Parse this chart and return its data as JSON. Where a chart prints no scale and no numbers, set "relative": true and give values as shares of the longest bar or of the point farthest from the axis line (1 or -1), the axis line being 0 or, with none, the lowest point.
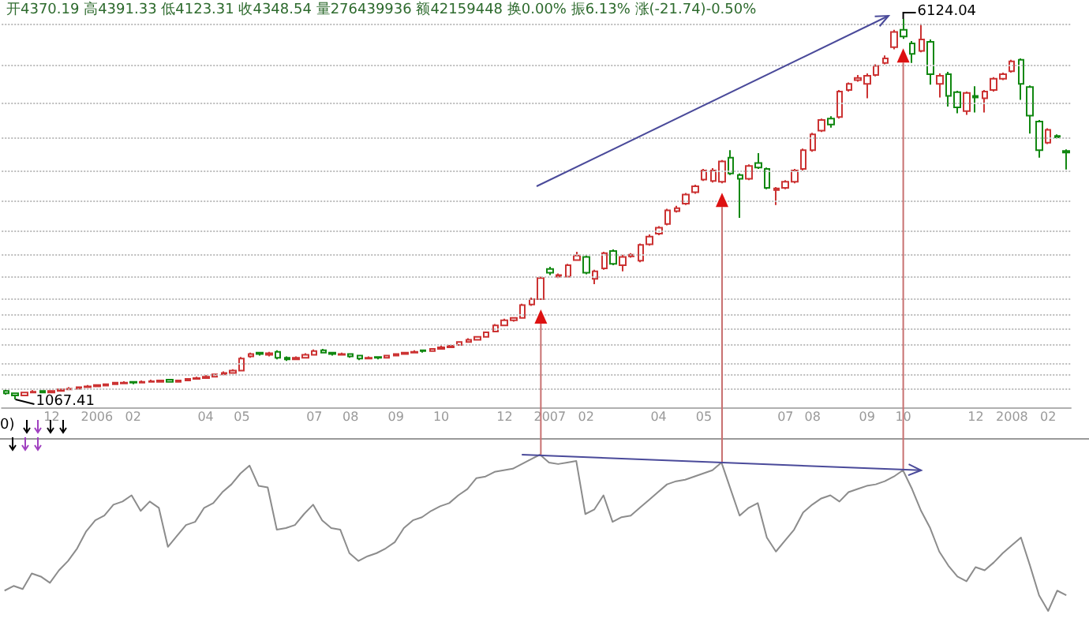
{
  "chart_data": [
    {
      "type": "candlestick",
      "title": "开4370.19 高4391.33 低4123.31 收4348.54 量276439936 额42159448 换0.00% 振6.13% 涨(-21.74)-0.50%",
      "categories": [
        null,
        null,
        null,
        null,
        null,
        "12",
        null,
        null,
        null,
        null,
        "2006",
        null,
        null,
        null,
        "02",
        null,
        null,
        null,
        null,
        null,
        null,
        null,
        "04",
        null,
        null,
        null,
        "05",
        null,
        null,
        null,
        null,
        null,
        null,
        null,
        "07",
        null,
        null,
        null,
        "08",
        null,
        null,
        null,
        null,
        "09",
        null,
        null,
        null,
        null,
        "10",
        null,
        null,
        null,
        null,
        null,
        null,
        "12",
        null,
        null,
        null,
        null,
        "2007",
        null,
        null,
        null,
        "02",
        null,
        null,
        null,
        null,
        null,
        null,
        null,
        "04",
        null,
        null,
        null,
        null,
        "05",
        null,
        null,
        null,
        null,
        null,
        null,
        null,
        null,
        "07",
        null,
        null,
        "08",
        null,
        null,
        null,
        null,
        null,
        "09",
        null,
        null,
        null,
        "10",
        null,
        null,
        null,
        null,
        null,
        null,
        null,
        "12",
        null,
        null,
        null,
        "2008",
        null,
        null,
        null,
        "02",
        null,
        null
      ],
      "ohlc": [
        [
          1180,
          1200,
          1130,
          1150
        ],
        [
          1150,
          1160,
          1067.41,
          1120
        ],
        [
          1120,
          1170,
          1110,
          1160
        ],
        [
          1160,
          1190,
          1150,
          1170
        ],
        [
          1180,
          1190,
          1150,
          1160
        ],
        [
          1160,
          1190,
          1150,
          1180
        ],
        [
          1180,
          1210,
          1170,
          1200
        ],
        [
          1200,
          1230,
          1190,
          1210
        ],
        [
          1210,
          1240,
          1200,
          1230
        ],
        [
          1230,
          1260,
          1220,
          1240
        ],
        [
          1240,
          1270,
          1230,
          1260
        ],
        [
          1250,
          1280,
          1240,
          1270
        ],
        [
          1270,
          1300,
          1260,
          1290
        ],
        [
          1280,
          1310,
          1270,
          1290
        ],
        [
          1300,
          1310,
          1270,
          1290
        ],
        [
          1290,
          1320,
          1280,
          1300
        ],
        [
          1300,
          1330,
          1290,
          1310
        ],
        [
          1300,
          1330,
          1290,
          1320
        ],
        [
          1330,
          1340,
          1290,
          1300
        ],
        [
          1300,
          1330,
          1290,
          1320
        ],
        [
          1320,
          1350,
          1310,
          1340
        ],
        [
          1340,
          1370,
          1330,
          1350
        ],
        [
          1350,
          1390,
          1340,
          1370
        ],
        [
          1370,
          1410,
          1360,
          1400
        ],
        [
          1400,
          1440,
          1390,
          1420
        ],
        [
          1420,
          1470,
          1410,
          1450
        ],
        [
          1450,
          1630,
          1440,
          1610
        ],
        [
          1640,
          1690,
          1620,
          1670
        ],
        [
          1690,
          1700,
          1650,
          1670
        ],
        [
          1660,
          1700,
          1640,
          1680
        ],
        [
          1700,
          1720,
          1600,
          1620
        ],
        [
          1620,
          1640,
          1580,
          1600
        ],
        [
          1600,
          1640,
          1590,
          1620
        ],
        [
          1620,
          1680,
          1610,
          1660
        ],
        [
          1660,
          1730,
          1650,
          1710
        ],
        [
          1720,
          1740,
          1680,
          1690
        ],
        [
          1690,
          1700,
          1650,
          1670
        ],
        [
          1660,
          1690,
          1650,
          1670
        ],
        [
          1670,
          1680,
          1620,
          1640
        ],
        [
          1650,
          1660,
          1590,
          1610
        ],
        [
          1610,
          1640,
          1600,
          1620
        ],
        [
          1630,
          1640,
          1600,
          1620
        ],
        [
          1620,
          1660,
          1610,
          1650
        ],
        [
          1650,
          1680,
          1640,
          1670
        ],
        [
          1670,
          1700,
          1660,
          1690
        ],
        [
          1690,
          1720,
          1680,
          1700
        ],
        [
          1720,
          1730,
          1690,
          1710
        ],
        [
          1710,
          1750,
          1700,
          1740
        ],
        [
          1740,
          1780,
          1730,
          1760
        ],
        [
          1760,
          1790,
          1750,
          1780
        ],
        [
          1790,
          1840,
          1780,
          1830
        ],
        [
          1830,
          1880,
          1820,
          1860
        ],
        [
          1860,
          1910,
          1850,
          1900
        ],
        [
          1900,
          1970,
          1890,
          1960
        ],
        [
          1970,
          2070,
          1960,
          2050
        ],
        [
          2050,
          2140,
          2040,
          2120
        ],
        [
          2120,
          2160,
          2100,
          2150
        ],
        [
          2150,
          2340,
          2140,
          2320
        ],
        [
          2330,
          2420,
          2310,
          2400
        ],
        [
          2400,
          2700,
          2390,
          2680
        ],
        [
          2800,
          2830,
          2720,
          2750
        ],
        [
          2700,
          2740,
          2680,
          2720
        ],
        [
          2700,
          2870,
          2690,
          2850
        ],
        [
          2920,
          3030,
          2910,
          2980
        ],
        [
          2960,
          2990,
          2730,
          2750
        ],
        [
          2670,
          2790,
          2600,
          2770
        ],
        [
          2810,
          3030,
          2790,
          3010
        ],
        [
          3040,
          3060,
          2850,
          2870
        ],
        [
          2850,
          2990,
          2770,
          2960
        ],
        [
          2970,
          3010,
          2950,
          2990
        ],
        [
          2910,
          3140,
          2890,
          3120
        ],
        [
          3130,
          3260,
          3110,
          3230
        ],
        [
          3270,
          3370,
          3250,
          3350
        ],
        [
          3400,
          3600,
          3380,
          3580
        ],
        [
          3570,
          3640,
          3550,
          3610
        ],
        [
          3670,
          3810,
          3650,
          3790
        ],
        [
          3820,
          3920,
          3800,
          3900
        ],
        [
          3990,
          4130,
          3970,
          4110
        ],
        [
          3970,
          4140,
          3950,
          4110
        ],
        [
          3960,
          4250,
          3940,
          4230
        ],
        [
          4280,
          4380,
          4050,
          4070
        ],
        [
          4050,
          4070,
          3480,
          4000
        ],
        [
          4000,
          4190,
          3980,
          4170
        ],
        [
          4210,
          4340,
          4130,
          4150
        ],
        [
          4130,
          4150,
          3860,
          3880
        ],
        [
          3850,
          3890,
          3650,
          3870
        ],
        [
          3880,
          3980,
          3860,
          3960
        ],
        [
          3960,
          4130,
          3940,
          4110
        ],
        [
          4130,
          4400,
          4110,
          4380
        ],
        [
          4380,
          4610,
          4360,
          4590
        ],
        [
          4640,
          4800,
          4620,
          4780
        ],
        [
          4800,
          4830,
          4680,
          4720
        ],
        [
          4820,
          5180,
          4800,
          5160
        ],
        [
          5180,
          5280,
          5160,
          5260
        ],
        [
          5310,
          5380,
          5290,
          5340
        ],
        [
          5260,
          5400,
          5070,
          5370
        ],
        [
          5380,
          5520,
          5360,
          5500
        ],
        [
          5540,
          5640,
          5520,
          5600
        ],
        [
          5750,
          5980,
          5720,
          5950
        ],
        [
          5980,
          6124.04,
          5860,
          5890
        ],
        [
          5800,
          5830,
          5540,
          5660
        ],
        [
          5700,
          6060,
          5680,
          5850
        ],
        [
          5820,
          5850,
          5250,
          5390
        ],
        [
          5260,
          5400,
          5080,
          5370
        ],
        [
          5390,
          5420,
          4960,
          5100
        ],
        [
          5150,
          5170,
          4870,
          4950
        ],
        [
          4900,
          5160,
          4850,
          5140
        ],
        [
          5100,
          5230,
          4880,
          5080
        ],
        [
          5070,
          5180,
          4880,
          5160
        ],
        [
          5180,
          5350,
          5160,
          5330
        ],
        [
          5330,
          5410,
          5310,
          5390
        ],
        [
          5430,
          5580,
          5410,
          5560
        ],
        [
          5580,
          5600,
          5050,
          5260
        ],
        [
          5220,
          5240,
          4600,
          4840
        ],
        [
          4760,
          4780,
          4280,
          4380
        ],
        [
          4480,
          4670,
          4460,
          4650
        ],
        [
          4570,
          4590,
          4530,
          4550
        ],
        [
          4370.19,
          4391.33,
          4123.31,
          4348.54
        ]
      ],
      "colors": [
        "#118811",
        "#118811",
        "#cc3333",
        "#cc3333",
        "#118811",
        "#cc3333",
        "#cc3333",
        "#cc3333",
        "#cc3333",
        "#cc3333",
        "#cc3333",
        "#cc3333",
        "#cc3333",
        "#cc3333",
        "#118811",
        "#cc3333",
        "#cc3333",
        "#cc3333",
        "#118811",
        "#cc3333",
        "#cc3333",
        "#cc3333",
        "#cc3333",
        "#cc3333",
        "#cc3333",
        "#cc3333",
        "#cc3333",
        "#cc3333",
        "#118811",
        "#cc3333",
        "#118811",
        "#118811",
        "#cc3333",
        "#cc3333",
        "#cc3333",
        "#118811",
        "#118811",
        "#cc3333",
        "#118811",
        "#118811",
        "#cc3333",
        "#118811",
        "#cc3333",
        "#cc3333",
        "#cc3333",
        "#cc3333",
        "#118811",
        "#cc3333",
        "#cc3333",
        "#cc3333",
        "#cc3333",
        "#cc3333",
        "#cc3333",
        "#cc3333",
        "#cc3333",
        "#cc3333",
        "#cc3333",
        "#cc3333",
        "#cc3333",
        "#cc3333",
        "#118811",
        "#cc3333",
        "#cc3333",
        "#cc3333",
        "#118811",
        "#cc3333",
        "#cc3333",
        "#118811",
        "#cc3333",
        "#cc3333",
        "#cc3333",
        "#cc3333",
        "#cc3333",
        "#cc3333",
        "#cc3333",
        "#cc3333",
        "#cc3333",
        "#cc3333",
        "#cc3333",
        "#cc3333",
        "#118811",
        "#118811",
        "#cc3333",
        "#118811",
        "#118811",
        "#cc3333",
        "#cc3333",
        "#cc3333",
        "#cc3333",
        "#cc3333",
        "#cc3333",
        "#118811",
        "#cc3333",
        "#cc3333",
        "#cc3333",
        "#cc3333",
        "#cc3333",
        "#cc3333",
        "#cc3333",
        "#118811",
        "#118811",
        "#cc3333",
        "#118811",
        "#cc3333",
        "#118811",
        "#118811",
        "#cc3333",
        "#118811",
        "#cc3333",
        "#cc3333",
        "#cc3333",
        "#cc3333",
        "#118811",
        "#118811",
        "#118811",
        "#cc3333",
        "#118811",
        "#118811"
      ],
      "yticks": [
        {
          "value": 6050,
          "label": null
        },
        {
          "value": 5500,
          "label": null
        },
        {
          "value": 5000,
          "label": null
        },
        {
          "value": 4550,
          "label": null
        },
        {
          "value": 4100,
          "label": null
        },
        {
          "value": 3700,
          "label": null
        },
        {
          "value": 3300,
          "label": null
        },
        {
          "value": 3000,
          "label": null
        },
        {
          "value": 2700,
          "label": null
        },
        {
          "value": 2400,
          "label": null
        },
        {
          "value": 2200,
          "label": null
        },
        {
          "value": 2000,
          "label": null
        },
        {
          "value": 1800,
          "label": null
        },
        {
          "value": 1550,
          "label": null
        },
        {
          "value": 1400,
          "label": null
        },
        {
          "value": 1200,
          "label": null
        }
      ],
      "grid": "y",
      "tick_labels": "x",
      "annotations": [
        "6124.04",
        "1067.41"
      ]
    },
    {
      "type": "line",
      "relative": true,
      "color": "#8c8c8c",
      "marker": "none",
      "tick_labels": false,
      "annotations": [
        "0)"
      ],
      "categories": [
        null,
        null,
        null,
        null,
        null,
        null,
        null,
        null,
        null,
        null,
        null,
        null,
        null,
        null,
        null,
        null,
        null,
        null,
        null,
        null,
        null,
        null,
        null,
        null,
        null,
        null,
        null,
        null,
        null,
        null,
        null,
        null,
        null,
        null,
        null,
        null,
        null,
        null,
        null,
        null,
        null,
        null,
        null,
        null,
        null,
        null,
        null,
        null,
        null,
        null,
        null,
        null,
        null,
        null,
        null,
        null,
        null,
        null,
        null,
        null,
        null,
        null,
        null,
        null,
        null,
        null,
        null,
        null,
        null,
        null,
        null,
        null,
        null,
        null,
        null,
        null,
        null,
        null,
        null,
        null,
        null,
        null,
        null,
        null,
        null,
        null,
        null,
        null,
        null,
        null,
        null,
        null,
        null,
        null,
        null,
        null,
        null,
        null,
        null,
        null,
        null,
        null,
        null,
        null,
        null,
        null,
        null,
        null,
        null,
        null,
        null,
        null,
        null,
        null,
        null,
        null,
        null,
        null
      ],
      "values": [
        0.13,
        0.16,
        0.14,
        0.24,
        0.22,
        0.18,
        0.26,
        0.32,
        0.4,
        0.51,
        0.58,
        0.61,
        0.68,
        0.7,
        0.74,
        0.64,
        0.7,
        0.66,
        0.41,
        0.48,
        0.55,
        0.57,
        0.66,
        0.69,
        0.76,
        0.81,
        0.88,
        0.93,
        0.8,
        0.79,
        0.52,
        0.53,
        0.55,
        0.62,
        0.68,
        0.58,
        0.53,
        0.52,
        0.37,
        0.32,
        0.35,
        0.37,
        0.4,
        0.44,
        0.53,
        0.58,
        0.6,
        0.64,
        0.67,
        0.69,
        0.74,
        0.78,
        0.85,
        0.86,
        0.89,
        0.9,
        0.91,
        0.94,
        0.97,
        1,
        0.95,
        0.94,
        0.95,
        0.96,
        0.62,
        0.65,
        0.74,
        0.57,
        0.6,
        0.61,
        0.66,
        0.71,
        0.76,
        0.81,
        0.83,
        0.84,
        0.86,
        0.88,
        0.9,
        0.95,
        0.78,
        0.61,
        0.66,
        0.69,
        0.47,
        0.38,
        0.45,
        0.52,
        0.63,
        0.68,
        0.72,
        0.74,
        0.7,
        0.76,
        0.78,
        0.8,
        0.81,
        0.83,
        0.86,
        0.9,
        0.78,
        0.64,
        0.53,
        0.38,
        0.29,
        0.22,
        0.19,
        0.28,
        0.26,
        0.31,
        0.37,
        0.42,
        0.47,
        0.29,
        0.1,
        0,
        0.13,
        0.1
      ]
    }
  ]
}
